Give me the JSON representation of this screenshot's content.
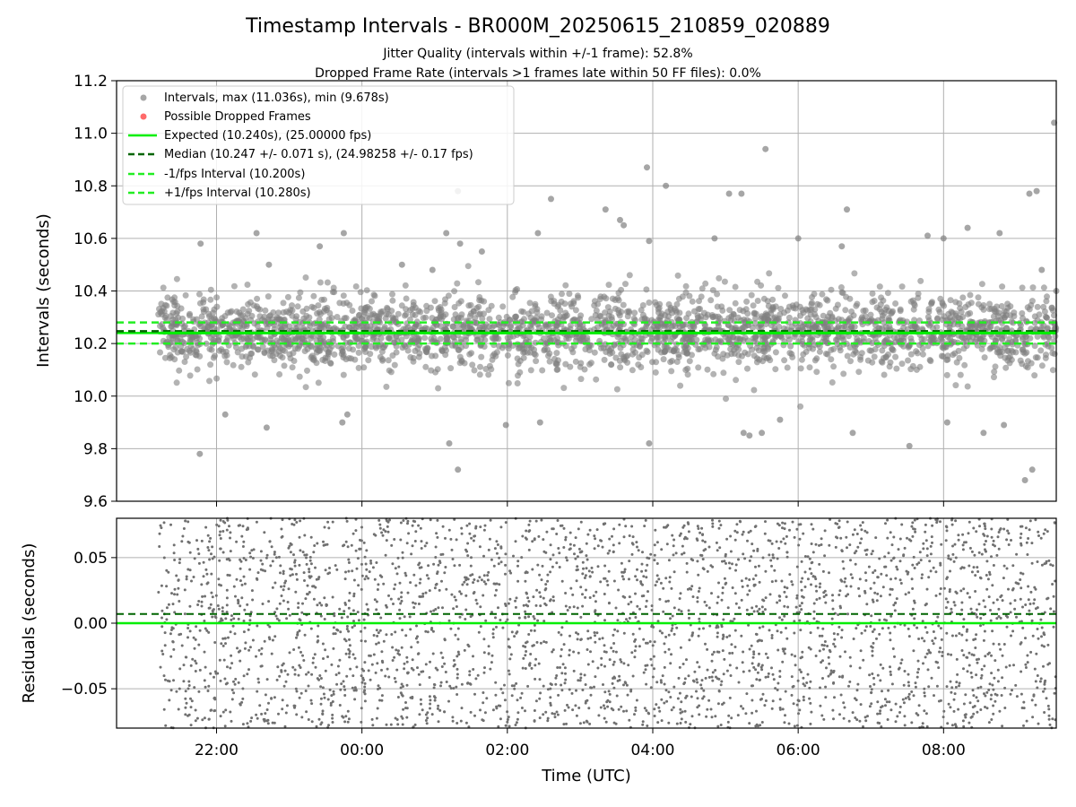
{
  "chart_data": [
    {
      "type": "scatter",
      "title": "Timestamp Intervals - BR000M_20250615_210859_020889",
      "subtitle_lines": [
        "Jitter Quality (intervals within +/-1 frame): 52.8%",
        "Dropped Frame Rate (intervals >1 frames late within 50 FF files): 0.0%"
      ],
      "xlabel": "",
      "ylabel": "Intervals (seconds)",
      "xlim_hours": [
        20.625,
        33.55
      ],
      "ylim": [
        9.6,
        11.2
      ],
      "yticks": [
        "9.6",
        "9.8",
        "10.0",
        "10.2",
        "10.4",
        "10.6",
        "10.8",
        "11.0",
        "11.2"
      ],
      "grid": true,
      "legend_location": "upper left",
      "legend": [
        "Intervals, max (11.036s), min (9.678s)",
        "Possible Dropped Frames",
        "Expected (10.240s), (25.00000 fps)",
        "Median (10.247 +/- 0.071 s), (24.98258 +/- 0.17 fps)",
        "-1/fps Interval (10.200s)",
        "+1/fps Interval (10.280s)"
      ],
      "reference_lines": {
        "expected": 10.24,
        "median": 10.247,
        "minus_fps": 10.2,
        "plus_fps": 10.28
      },
      "line_start_hour": 21.2,
      "series": [
        {
          "name": "Intervals, max (11.036s), min (9.678s)",
          "color": "#808080",
          "sample_points": [
            [
              21.77,
              9.78
            ],
            [
              21.78,
              10.58
            ],
            [
              22.12,
              9.93
            ],
            [
              22.55,
              10.62
            ],
            [
              22.69,
              9.88
            ],
            [
              22.72,
              10.5
            ],
            [
              23.42,
              10.57
            ],
            [
              23.75,
              10.62
            ],
            [
              23.73,
              9.9
            ],
            [
              23.8,
              9.93
            ],
            [
              24.55,
              10.5
            ],
            [
              24.97,
              10.48
            ],
            [
              25.16,
              10.62
            ],
            [
              25.2,
              9.82
            ],
            [
              25.32,
              9.72
            ],
            [
              25.32,
              10.78
            ],
            [
              25.35,
              10.58
            ],
            [
              25.65,
              10.55
            ],
            [
              25.98,
              9.89
            ],
            [
              26.42,
              10.62
            ],
            [
              26.45,
              9.9
            ],
            [
              26.6,
              10.75
            ],
            [
              27.35,
              10.71
            ],
            [
              27.55,
              10.67
            ],
            [
              27.6,
              10.65
            ],
            [
              27.92,
              10.87
            ],
            [
              27.95,
              9.82
            ],
            [
              27.95,
              10.59
            ],
            [
              28.18,
              10.8
            ],
            [
              28.85,
              10.6
            ],
            [
              29.05,
              10.77
            ],
            [
              29.22,
              10.77
            ],
            [
              29.25,
              9.86
            ],
            [
              29.33,
              9.85
            ],
            [
              29.55,
              10.94
            ],
            [
              29.5,
              9.86
            ],
            [
              29.75,
              9.91
            ],
            [
              30.0,
              10.6
            ],
            [
              30.6,
              10.57
            ],
            [
              30.67,
              10.71
            ],
            [
              30.75,
              9.86
            ],
            [
              31.53,
              9.81
            ],
            [
              31.78,
              10.61
            ],
            [
              32.05,
              9.9
            ],
            [
              32.0,
              10.6
            ],
            [
              32.55,
              9.86
            ],
            [
              32.33,
              10.64
            ],
            [
              32.77,
              10.62
            ],
            [
              32.83,
              9.89
            ],
            [
              33.18,
              10.77
            ],
            [
              33.12,
              9.68
            ],
            [
              33.22,
              9.72
            ],
            [
              33.28,
              10.78
            ],
            [
              33.35,
              10.48
            ],
            [
              33.52,
              11.04
            ],
            [
              33.55,
              10.4
            ]
          ]
        },
        {
          "name": "Possible Dropped Frames",
          "color": "#ff5a5a",
          "sample_points": []
        }
      ],
      "bulk_band": {
        "center": 10.247,
        "spread": 0.071,
        "hour_range": [
          21.2,
          33.55
        ]
      }
    },
    {
      "type": "scatter",
      "title": "",
      "xlabel": "Time (UTC)",
      "ylabel": "Residuals (seconds)",
      "xlim_hours": [
        20.625,
        33.55
      ],
      "ylim": [
        -0.08,
        0.08
      ],
      "yticks": [
        "−0.05",
        "0.00",
        "0.05"
      ],
      "ytick_values": [
        -0.05,
        0.0,
        0.05
      ],
      "xticks": [
        "22:00",
        "00:00",
        "02:00",
        "04:00",
        "06:00",
        "08:00"
      ],
      "xtick_hours": [
        22,
        24,
        26,
        28,
        30,
        32
      ],
      "grid": true,
      "reference_lines": {
        "zero": 0.0,
        "median_offset": 0.007
      },
      "series": [
        {
          "name": "",
          "color": "#707070",
          "distribution": "uniform noise within ylim",
          "hour_range": [
            21.2,
            33.55
          ]
        }
      ]
    }
  ],
  "colors": {
    "points": "#808080",
    "dropped": "#ff5a5a",
    "expected": "#00ee00",
    "median": "#006400",
    "fps_bounds": "#22ee22",
    "grid": "#b0b0b0"
  }
}
